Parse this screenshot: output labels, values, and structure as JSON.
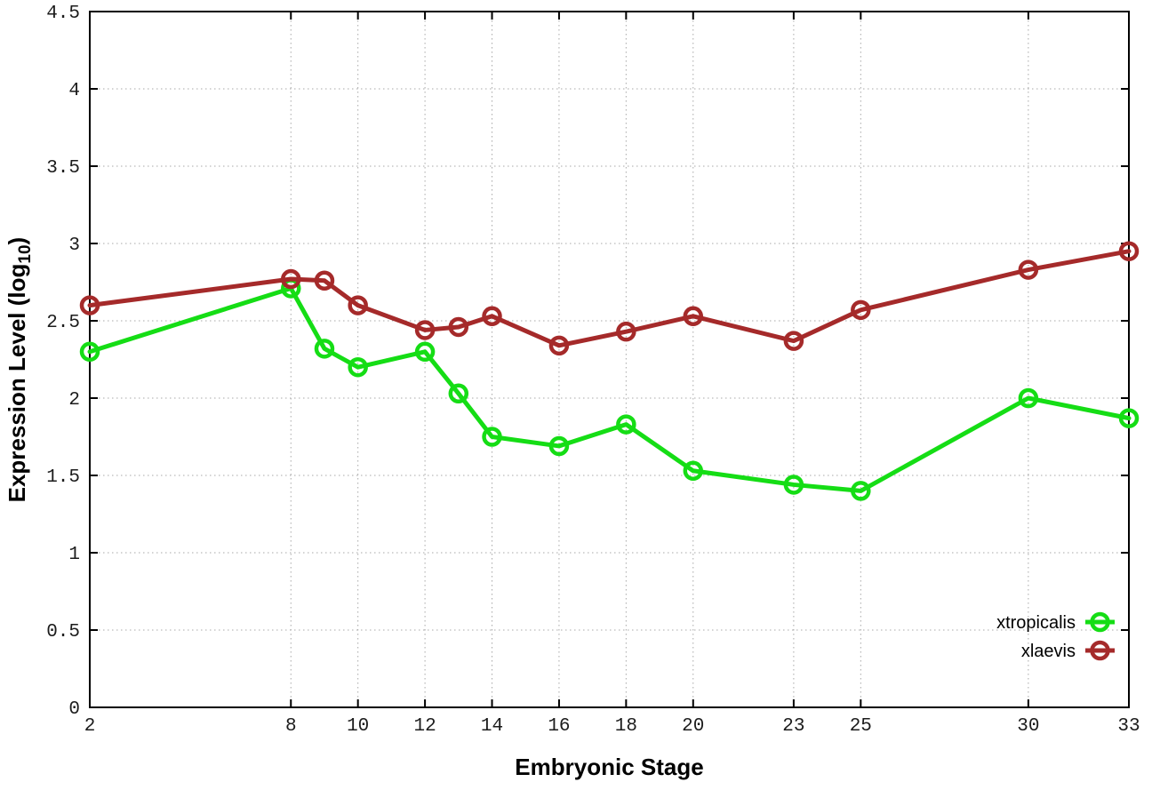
{
  "chart_data": {
    "type": "line",
    "xlabel": "Embryonic Stage",
    "ylabel": "Expression Level (log10)",
    "ylabel_parts": {
      "main": "Expression Level (log",
      "sub": "10",
      "end": ")"
    },
    "x": [
      2,
      8,
      9,
      10,
      12,
      13,
      14,
      16,
      18,
      20,
      23,
      25,
      30,
      33
    ],
    "series": [
      {
        "name": "xtropicalis",
        "color": "#15dd15",
        "values": [
          2.3,
          2.71,
          2.32,
          2.2,
          2.3,
          2.03,
          1.75,
          1.69,
          1.83,
          1.53,
          1.44,
          1.4,
          2.0,
          1.87
        ]
      },
      {
        "name": "xlaevis",
        "color": "#a52a2a",
        "values": [
          2.6,
          2.77,
          2.76,
          2.6,
          2.44,
          2.46,
          2.53,
          2.34,
          2.43,
          2.53,
          2.37,
          2.57,
          2.83,
          2.95
        ]
      }
    ],
    "x_ticks": [
      2,
      8,
      10,
      12,
      14,
      16,
      18,
      20,
      23,
      25,
      30,
      33
    ],
    "y_ticks": [
      0,
      0.5,
      1,
      1.5,
      2,
      2.5,
      3,
      3.5,
      4,
      4.5
    ],
    "xlim": [
      2,
      33
    ],
    "ylim": [
      0,
      4.5
    ],
    "grid": true,
    "legend_position": "inside-bottom-right",
    "colors": {
      "axis": "#000000",
      "grid": "#a8a8a8",
      "tick_label": "#1c1c1c",
      "legend_text": "#000000",
      "background": "#ffffff"
    }
  }
}
